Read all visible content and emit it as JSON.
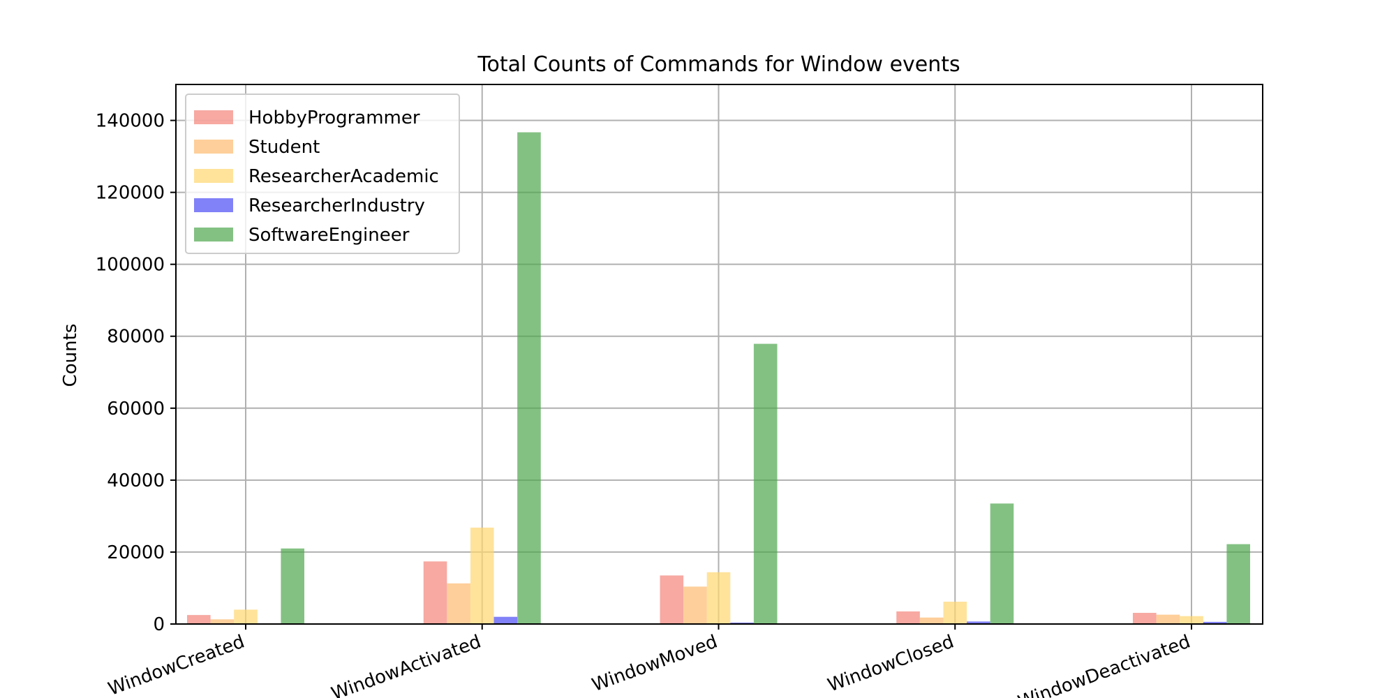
{
  "chart_data": {
    "type": "bar",
    "title": "Total Counts of Commands for Window events",
    "xlabel": "",
    "ylabel": "Counts",
    "categories": [
      "WindowCreated",
      "WindowActivated",
      "WindowMoved",
      "WindowClosed",
      "WindowDeactivated"
    ],
    "series": [
      {
        "name": "HobbyProgrammer",
        "color": "#f4847a",
        "values": [
          2500,
          17400,
          13500,
          3500,
          3100
        ]
      },
      {
        "name": "Student",
        "color": "#fdbb6f",
        "values": [
          1300,
          11300,
          10400,
          1800,
          2600
        ]
      },
      {
        "name": "ResearcherAcademic",
        "color": "#ffd770",
        "values": [
          4000,
          26800,
          14400,
          6200,
          2200
        ]
      },
      {
        "name": "ResearcherIndustry",
        "color": "#4c4cf5",
        "values": [
          200,
          2000,
          400,
          700,
          600
        ]
      },
      {
        "name": "SoftwareEngineer",
        "color": "#4ea74e",
        "values": [
          21000,
          136700,
          77900,
          33500,
          22200
        ]
      }
    ],
    "ylim": [
      0,
      150000
    ],
    "yticks": [
      0,
      20000,
      40000,
      60000,
      80000,
      100000,
      120000,
      140000
    ],
    "grid": true,
    "legend_position": "top-left",
    "bar_opacity": 0.7
  }
}
